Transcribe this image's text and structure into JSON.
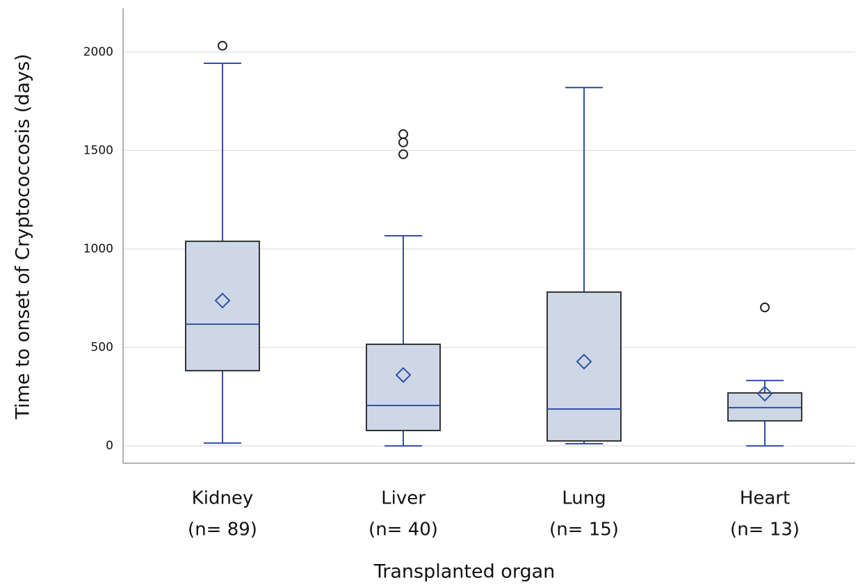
{
  "chart_data": {
    "type": "box",
    "y_label": "Time  to onset of Cryptococcosis (days)",
    "x_label": "Transplanted organ",
    "categories": [
      "Kidney",
      "Liver",
      "Lung",
      "Heart"
    ],
    "n_labels": [
      "(n= 89)",
      "(n= 40)",
      "(n= 15)",
      "(n= 13)"
    ],
    "boxes": [
      {
        "min": 14,
        "q1": 382,
        "median": 618,
        "q3": 1039,
        "max": 1943,
        "mean": 738,
        "outliers": [
          2032
        ]
      },
      {
        "min": 0,
        "q1": 78,
        "median": 205,
        "q3": 516,
        "max": 1067,
        "mean": 360,
        "outliers": [
          1583,
          1541,
          1481
        ]
      },
      {
        "min": 11,
        "q1": 25,
        "median": 187,
        "q3": 781,
        "max": 1820,
        "mean": 428,
        "outliers": []
      },
      {
        "min": 0,
        "q1": 127,
        "median": 194,
        "q3": 269,
        "max": 332,
        "mean": 265,
        "outliers": [
          703
        ]
      }
    ],
    "box_color": "#cdd7e6",
    "line_color": "#2f4fa8",
    "ylim": [
      -88,
      2222
    ],
    "yticks": [
      0,
      500,
      1000,
      1500,
      2000
    ],
    "grid": true
  }
}
